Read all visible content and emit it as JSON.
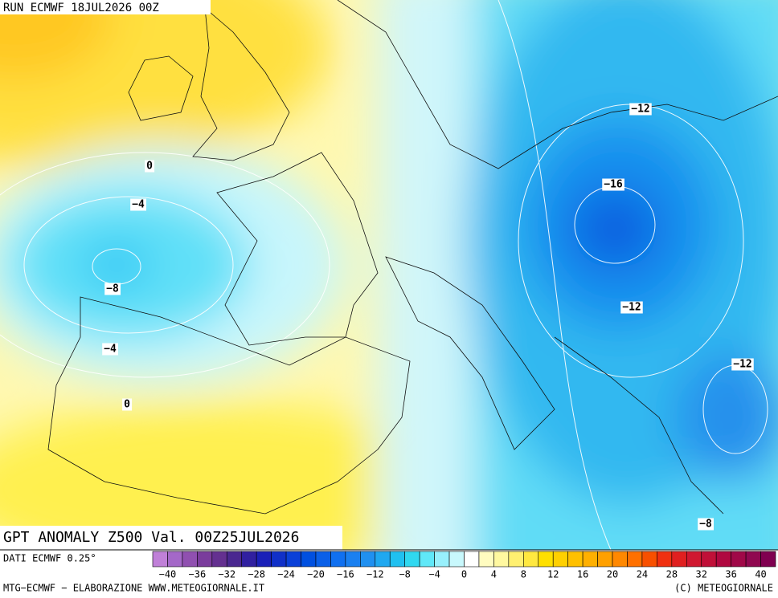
{
  "header": {
    "run": "RUN ECMWF 18JUL2026 00Z"
  },
  "map": {
    "title": "GPT ANOMALY Z500 Val. 00Z25JUL2026",
    "contour_labels": [
      "0",
      "−4",
      "−8",
      "−4",
      "0",
      "−12",
      "−16",
      "−12",
      "−12",
      "−8"
    ]
  },
  "colorbar": {
    "colors": [
      "#c080d8",
      "#a468c8",
      "#9050b0",
      "#7a3c9c",
      "#643090",
      "#4a2890",
      "#3020a0",
      "#1a20b8",
      "#1030c8",
      "#0a40d8",
      "#0050e0",
      "#0a60e8",
      "#1070f0",
      "#1a80f0",
      "#2090f0",
      "#20a8f0",
      "#20c0f0",
      "#30d8f0",
      "#60e8f8",
      "#98f0fc",
      "#c8f8fc",
      "#ffffff",
      "#fffcc0",
      "#fff8a0",
      "#fff070",
      "#ffe840",
      "#ffe000",
      "#ffd000",
      "#ffc000",
      "#ffb000",
      "#ffa000",
      "#ff8800",
      "#ff7000",
      "#f85000",
      "#f03010",
      "#e02020",
      "#d01830",
      "#c01038",
      "#b00840",
      "#a00848",
      "#900850",
      "#800050"
    ],
    "labels": [
      "−40",
      "−36",
      "−32",
      "−28",
      "−24",
      "−20",
      "−16",
      "−12",
      "−8",
      "−4",
      "0",
      "4",
      "8",
      "12",
      "16",
      "20",
      "24",
      "28",
      "32",
      "36",
      "40"
    ]
  },
  "footer": {
    "source": "DATI ECMWF 0.25°",
    "credit": "MTG−ECMWF − ELABORAZIONE WWW.METEOGIORNALE.IT",
    "copyright": "(C) METEOGIORNALE"
  }
}
